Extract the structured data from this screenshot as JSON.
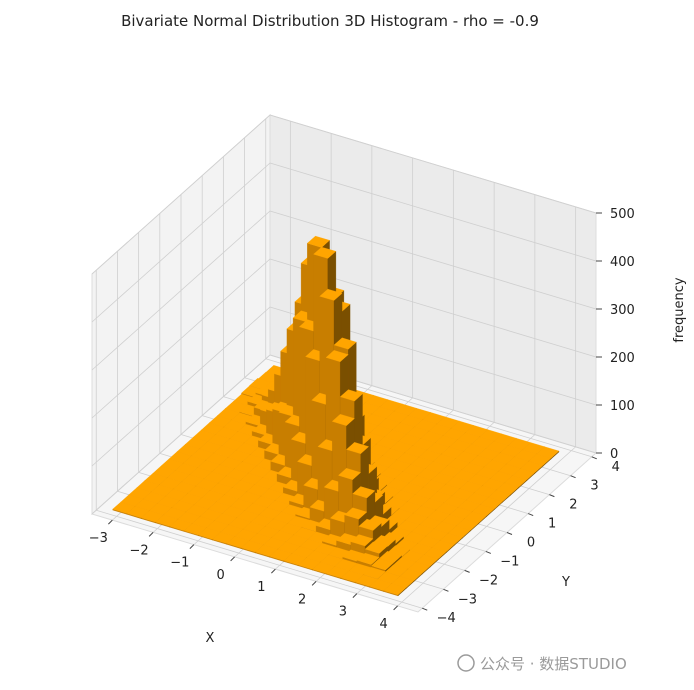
{
  "chart_data": {
    "type": "bar3d",
    "title": "Bivariate Normal Distribution 3D Histogram - rho = -0.9",
    "xlabel": "X",
    "ylabel": "Y",
    "zlabel": "frequency",
    "x_ticks": [
      "−3",
      "−2",
      "−1",
      "0",
      "1",
      "2",
      "3",
      "4"
    ],
    "y_ticks": [
      "−4",
      "−3",
      "−2",
      "−1",
      "0",
      "1",
      "2",
      "3",
      "4"
    ],
    "z_ticks": [
      "0",
      "100",
      "200",
      "300",
      "400",
      "500"
    ],
    "xlim": [
      -3.5,
      4.5
    ],
    "ylim": [
      -4.2,
      4.2
    ],
    "zlim": [
      0,
      500
    ],
    "rho": -0.9,
    "bins": 20,
    "bar_color": "#ffa500",
    "grid": true
  },
  "watermark": "公众号 · 数据STUDIO"
}
